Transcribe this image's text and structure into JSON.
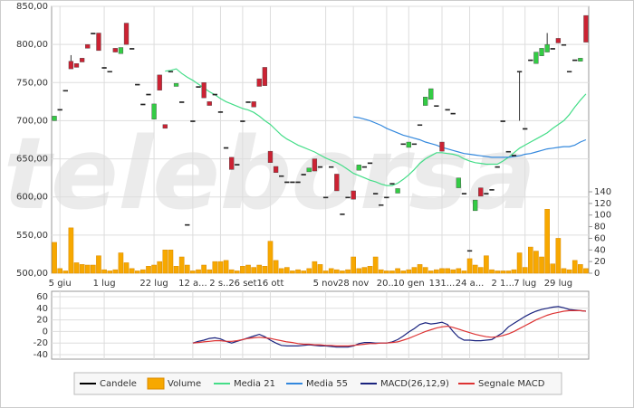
{
  "chart_data": [
    {
      "type": "candlestick",
      "name": "Candele",
      "watermark": "teleborsa",
      "grid": true,
      "color_up": "#33cc44",
      "color_down": "#cc2233",
      "color_flat": "#222222",
      "categories": [
        null,
        "5 giu",
        null,
        null,
        null,
        null,
        null,
        null,
        null,
        "1 lug",
        null,
        null,
        null,
        null,
        null,
        null,
        null,
        null,
        "22 lug",
        null,
        null,
        null,
        null,
        null,
        null,
        "12 a...",
        null,
        null,
        null,
        null,
        "2 s...",
        null,
        null,
        null,
        "26 set",
        null,
        null,
        null,
        null,
        "16 ott",
        null,
        null,
        null,
        null,
        null,
        null,
        null,
        null,
        null,
        "5 nov",
        null,
        null,
        null,
        null,
        "28 nov",
        null,
        null,
        null,
        null,
        null,
        "20...",
        null,
        null,
        null,
        "10 gen",
        null,
        null,
        null,
        null,
        null,
        "131...",
        null,
        null,
        null,
        null,
        "24 a...",
        null,
        null,
        null,
        null,
        null,
        "2 1...",
        null,
        null,
        null,
        "7 lug",
        null,
        null,
        null,
        null,
        null,
        "29 lug",
        null,
        null,
        null,
        null,
        null
      ],
      "open": [
        700,
        715,
        740,
        778,
        775,
        782,
        800,
        815,
        815,
        770,
        765,
        795,
        788,
        828,
        795,
        748,
        722,
        735,
        702,
        760,
        695,
        765,
        745,
        725,
        564,
        700,
        745,
        750,
        725,
        735,
        712,
        665,
        652,
        643,
        700,
        725,
        725,
        755,
        770,
        660,
        640,
        628,
        620,
        620,
        620,
        630,
        633,
        650,
        640,
        600,
        640,
        630,
        578,
        600,
        608,
        635,
        640,
        645,
        605,
        590,
        600,
        618,
        605,
        670,
        665,
        670,
        695,
        720,
        728,
        720,
        672,
        715,
        710,
        612,
        605,
        530,
        582,
        612,
        605,
        610,
        640,
        700,
        660,
        655,
        765,
        690,
        780,
        775,
        785,
        790,
        795,
        808,
        800,
        765,
        780,
        778,
        838
      ],
      "high": [
        706,
        715,
        740,
        786,
        775,
        782,
        800,
        815,
        815,
        770,
        765,
        795,
        796,
        828,
        795,
        748,
        722,
        735,
        722,
        760,
        695,
        765,
        749,
        725,
        564,
        700,
        745,
        750,
        725,
        735,
        712,
        665,
        652,
        643,
        700,
        725,
        725,
        755,
        770,
        660,
        640,
        628,
        620,
        620,
        620,
        630,
        638,
        650,
        640,
        600,
        640,
        630,
        578,
        600,
        608,
        642,
        640,
        645,
        605,
        590,
        600,
        618,
        611,
        670,
        672,
        670,
        695,
        731,
        742,
        720,
        672,
        715,
        710,
        625,
        605,
        530,
        596,
        612,
        605,
        610,
        640,
        700,
        660,
        655,
        765,
        690,
        780,
        790,
        795,
        815,
        795,
        808,
        800,
        765,
        780,
        782,
        838
      ],
      "low": [
        700,
        715,
        740,
        768,
        770,
        777,
        795,
        815,
        792,
        770,
        765,
        790,
        788,
        800,
        795,
        748,
        722,
        735,
        702,
        740,
        690,
        765,
        745,
        725,
        564,
        700,
        745,
        730,
        720,
        735,
        712,
        665,
        636,
        643,
        700,
        725,
        718,
        745,
        746,
        645,
        632,
        628,
        620,
        620,
        620,
        630,
        633,
        634,
        640,
        600,
        640,
        608,
        578,
        600,
        597,
        635,
        640,
        645,
        605,
        590,
        600,
        618,
        605,
        670,
        665,
        670,
        695,
        720,
        728,
        720,
        660,
        715,
        710,
        612,
        605,
        530,
        582,
        601,
        605,
        610,
        640,
        700,
        660,
        655,
        700,
        690,
        780,
        775,
        785,
        790,
        795,
        802,
        800,
        765,
        780,
        778,
        803
      ],
      "close": [
        706,
        715,
        740,
        768,
        770,
        777,
        795,
        815,
        792,
        770,
        765,
        790,
        796,
        800,
        795,
        748,
        722,
        735,
        722,
        740,
        690,
        765,
        749,
        725,
        564,
        700,
        745,
        730,
        720,
        735,
        712,
        665,
        636,
        643,
        700,
        725,
        718,
        745,
        746,
        645,
        632,
        628,
        620,
        620,
        620,
        630,
        638,
        634,
        640,
        600,
        640,
        608,
        578,
        600,
        597,
        642,
        640,
        645,
        605,
        590,
        600,
        618,
        611,
        670,
        672,
        670,
        695,
        731,
        742,
        720,
        660,
        715,
        710,
        625,
        605,
        530,
        596,
        601,
        605,
        610,
        640,
        700,
        660,
        655,
        765,
        690,
        780,
        790,
        795,
        800,
        795,
        802,
        800,
        765,
        780,
        782,
        803
      ],
      "ylim": [
        500,
        850
      ],
      "yticks": [
        {
          "value": 500,
          "label": "500,00"
        },
        {
          "value": 550,
          "label": "550,00"
        },
        {
          "value": 600,
          "label": "600,00"
        },
        {
          "value": 650,
          "label": "650,00"
        },
        {
          "value": 700,
          "label": "700,00"
        },
        {
          "value": 750,
          "label": "750,00"
        },
        {
          "value": 800,
          "label": "800,00"
        },
        {
          "value": 850,
          "label": "850,00"
        }
      ],
      "volume": {
        "name": "Volume",
        "color": "#f7a800",
        "ylim": [
          0,
          140
        ],
        "yticks": [
          0,
          20,
          40,
          60,
          80,
          100,
          120,
          140
        ],
        "values": [
          53,
          8,
          4,
          78,
          18,
          15,
          14,
          14,
          30,
          6,
          4,
          6,
          35,
          18,
          8,
          4,
          6,
          12,
          14,
          20,
          40,
          40,
          12,
          28,
          14,
          4,
          6,
          14,
          6,
          20,
          20,
          22,
          6,
          4,
          12,
          14,
          10,
          14,
          12,
          55,
          22,
          8,
          10,
          4,
          6,
          4,
          8,
          20,
          15,
          4,
          8,
          6,
          4,
          6,
          28,
          8,
          10,
          12,
          28,
          6,
          4,
          4,
          8,
          4,
          6,
          10,
          15,
          10,
          4,
          6,
          8,
          8,
          6,
          8,
          4,
          25,
          14,
          10,
          30,
          6,
          4,
          4,
          4,
          6,
          35,
          10,
          45,
          38,
          28,
          110,
          16,
          60,
          8,
          6,
          22,
          15,
          8
        ]
      },
      "series": [
        {
          "name": "Media 21",
          "color": "#44dd88",
          "values": [
            null,
            null,
            null,
            null,
            null,
            null,
            null,
            null,
            null,
            null,
            null,
            null,
            null,
            null,
            null,
            null,
            null,
            null,
            null,
            null,
            765,
            766,
            768,
            762,
            757,
            753,
            748,
            743,
            738,
            734,
            729,
            725,
            722,
            719,
            716,
            714,
            711,
            706,
            700,
            695,
            688,
            681,
            676,
            672,
            668,
            665,
            662,
            659,
            655,
            651,
            648,
            645,
            641,
            636,
            631,
            628,
            625,
            622,
            620,
            617,
            615,
            615,
            618,
            623,
            629,
            636,
            644,
            650,
            654,
            658,
            658,
            657,
            656,
            654,
            650,
            647,
            645,
            644,
            643,
            643,
            643,
            647,
            652,
            658,
            664,
            668,
            672,
            676,
            680,
            684,
            690,
            695,
            700,
            708,
            718,
            727,
            735
          ]
        },
        {
          "name": "Media 55",
          "color": "#3388dd",
          "values": [
            null,
            null,
            null,
            null,
            null,
            null,
            null,
            null,
            null,
            null,
            null,
            null,
            null,
            null,
            null,
            null,
            null,
            null,
            null,
            null,
            null,
            null,
            null,
            null,
            null,
            null,
            null,
            null,
            null,
            null,
            null,
            null,
            null,
            null,
            null,
            null,
            null,
            null,
            null,
            null,
            null,
            null,
            null,
            null,
            null,
            null,
            null,
            null,
            null,
            null,
            null,
            null,
            null,
            null,
            705,
            704,
            702,
            700,
            697,
            694,
            690,
            687,
            684,
            681,
            679,
            677,
            675,
            672,
            670,
            668,
            665,
            663,
            661,
            659,
            657,
            656,
            655,
            654,
            653,
            652,
            652,
            652,
            652,
            653,
            654,
            656,
            657,
            659,
            661,
            663,
            664,
            665,
            666,
            666,
            668,
            672,
            675
          ]
        }
      ]
    },
    {
      "type": "line",
      "grid": true,
      "ylim": [
        -40,
        60
      ],
      "yticks": [
        60,
        40,
        20,
        0,
        -20,
        -40
      ],
      "series": [
        {
          "name": "MACD(26,12,9)",
          "color": "#1a237e",
          "values": [
            null,
            null,
            null,
            null,
            null,
            null,
            null,
            null,
            null,
            null,
            null,
            null,
            null,
            null,
            null,
            null,
            null,
            null,
            null,
            null,
            null,
            null,
            null,
            null,
            null,
            -20,
            -17,
            -15,
            -12,
            -11,
            -13,
            -17,
            -20,
            -17,
            -14,
            -11,
            -8,
            -5,
            -9,
            -15,
            -20,
            -24,
            -25,
            -25,
            -25,
            -24,
            -23,
            -24,
            -25,
            -25,
            -26,
            -27,
            -27,
            -27,
            -25,
            -21,
            -19,
            -19,
            -20,
            -20,
            -20,
            -18,
            -14,
            -8,
            -1,
            5,
            12,
            15,
            13,
            14,
            16,
            12,
            0,
            -10,
            -15,
            -15,
            -16,
            -16,
            -15,
            -14,
            -8,
            -2,
            8,
            14,
            20,
            26,
            31,
            35,
            38,
            40,
            42,
            43,
            41,
            38,
            37,
            36,
            35
          ]
        },
        {
          "name": "Segnale MACD",
          "color": "#dd3333",
          "values": [
            null,
            null,
            null,
            null,
            null,
            null,
            null,
            null,
            null,
            null,
            null,
            null,
            null,
            null,
            null,
            null,
            null,
            null,
            null,
            null,
            null,
            null,
            null,
            null,
            null,
            -20,
            -19,
            -18,
            -17,
            -16,
            -16,
            -17,
            -17,
            -16,
            -14,
            -12,
            -11,
            -10,
            -11,
            -12,
            -14,
            -16,
            -18,
            -19,
            -21,
            -22,
            -22,
            -23,
            -23,
            -24,
            -24,
            -25,
            -25,
            -25,
            -24,
            -23,
            -22,
            -21,
            -21,
            -20,
            -20,
            -19,
            -18,
            -15,
            -12,
            -8,
            -4,
            0,
            3,
            6,
            8,
            9,
            7,
            4,
            1,
            -2,
            -5,
            -7,
            -9,
            -10,
            -9,
            -7,
            -4,
            0,
            5,
            10,
            15,
            20,
            24,
            28,
            31,
            33,
            35,
            36,
            36,
            36,
            35
          ]
        }
      ]
    }
  ]
}
